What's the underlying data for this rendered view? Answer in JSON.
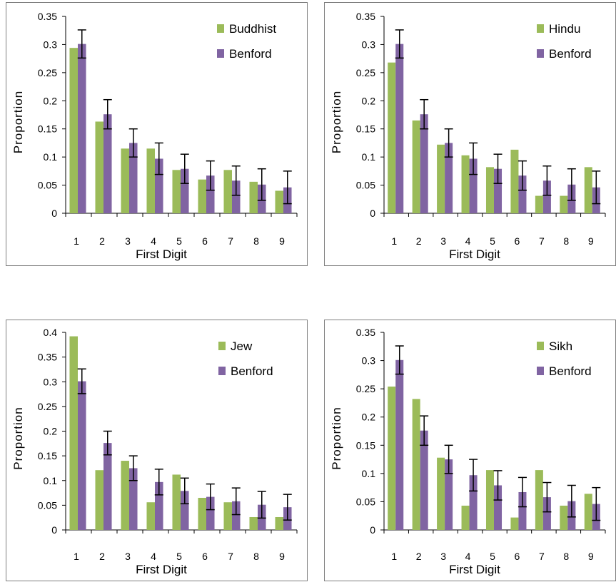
{
  "colors": {
    "observed": "#9bbb59",
    "benford": "#8064a2",
    "axis": "#000000"
  },
  "chart_data": [
    {
      "type": "bar",
      "xlabel": "First Digit",
      "ylabel": "Proportion",
      "legend_position": "top-right",
      "categories": [
        "1",
        "2",
        "3",
        "4",
        "5",
        "6",
        "7",
        "8",
        "9"
      ],
      "ylim": [
        0,
        0.35
      ],
      "yticks": [
        "0",
        "0.05",
        "0.1",
        "0.15",
        "0.2",
        "0.25",
        "0.3",
        "0.35"
      ],
      "series": [
        {
          "name": "Buddhist",
          "values": [
            0.294,
            0.163,
            0.115,
            0.115,
            0.077,
            0.06,
            0.077,
            0.056,
            0.04
          ]
        },
        {
          "name": "Benford",
          "values": [
            0.301,
            0.176,
            0.125,
            0.097,
            0.079,
            0.067,
            0.058,
            0.051,
            0.046
          ],
          "error": [
            0.025,
            0.026,
            0.025,
            0.028,
            0.026,
            0.026,
            0.026,
            0.028,
            0.029
          ]
        }
      ]
    },
    {
      "type": "bar",
      "xlabel": "First Digit",
      "ylabel": "Proportion",
      "legend_position": "top-right",
      "categories": [
        "1",
        "2",
        "3",
        "4",
        "5",
        "6",
        "7",
        "8",
        "9"
      ],
      "ylim": [
        0,
        0.35
      ],
      "yticks": [
        "0",
        "0.05",
        "0.1",
        "0.15",
        "0.2",
        "0.25",
        "0.3",
        "0.35"
      ],
      "series": [
        {
          "name": "Hindu",
          "values": [
            0.268,
            0.165,
            0.122,
            0.103,
            0.082,
            0.113,
            0.031,
            0.031,
            0.082
          ]
        },
        {
          "name": "Benford",
          "values": [
            0.301,
            0.176,
            0.125,
            0.097,
            0.079,
            0.067,
            0.058,
            0.051,
            0.046
          ],
          "error": [
            0.025,
            0.026,
            0.025,
            0.028,
            0.026,
            0.026,
            0.026,
            0.028,
            0.029
          ]
        }
      ]
    },
    {
      "type": "bar",
      "xlabel": "First Digit",
      "ylabel": "Proportion",
      "legend_position": "top-right",
      "categories": [
        "1",
        "2",
        "3",
        "4",
        "5",
        "6",
        "7",
        "8",
        "9"
      ],
      "ylim": [
        0,
        0.4
      ],
      "yticks": [
        "0",
        "0.05",
        "0.1",
        "0.15",
        "0.2",
        "0.25",
        "0.3",
        "0.35",
        "0.4"
      ],
      "series": [
        {
          "name": "Jew",
          "values": [
            0.392,
            0.121,
            0.14,
            0.056,
            0.112,
            0.065,
            0.056,
            0.026,
            0.026
          ]
        },
        {
          "name": "Benford",
          "values": [
            0.301,
            0.176,
            0.125,
            0.097,
            0.079,
            0.067,
            0.058,
            0.051,
            0.046
          ],
          "error": [
            0.025,
            0.024,
            0.025,
            0.026,
            0.026,
            0.026,
            0.027,
            0.027,
            0.026
          ]
        }
      ]
    },
    {
      "type": "bar",
      "xlabel": "First Digit",
      "ylabel": "Proportion",
      "legend_position": "top-right",
      "categories": [
        "1",
        "2",
        "3",
        "4",
        "5",
        "6",
        "7",
        "8",
        "9"
      ],
      "ylim": [
        0,
        0.35
      ],
      "yticks": [
        "0",
        "0.05",
        "0.1",
        "0.15",
        "0.2",
        "0.25",
        "0.3",
        "0.35"
      ],
      "series": [
        {
          "name": "Sikh",
          "values": [
            0.254,
            0.232,
            0.128,
            0.043,
            0.106,
            0.022,
            0.106,
            0.043,
            0.064
          ]
        },
        {
          "name": "Benford",
          "values": [
            0.301,
            0.176,
            0.125,
            0.097,
            0.079,
            0.067,
            0.058,
            0.051,
            0.046
          ],
          "error": [
            0.025,
            0.026,
            0.025,
            0.028,
            0.026,
            0.026,
            0.026,
            0.028,
            0.029
          ]
        }
      ]
    }
  ]
}
